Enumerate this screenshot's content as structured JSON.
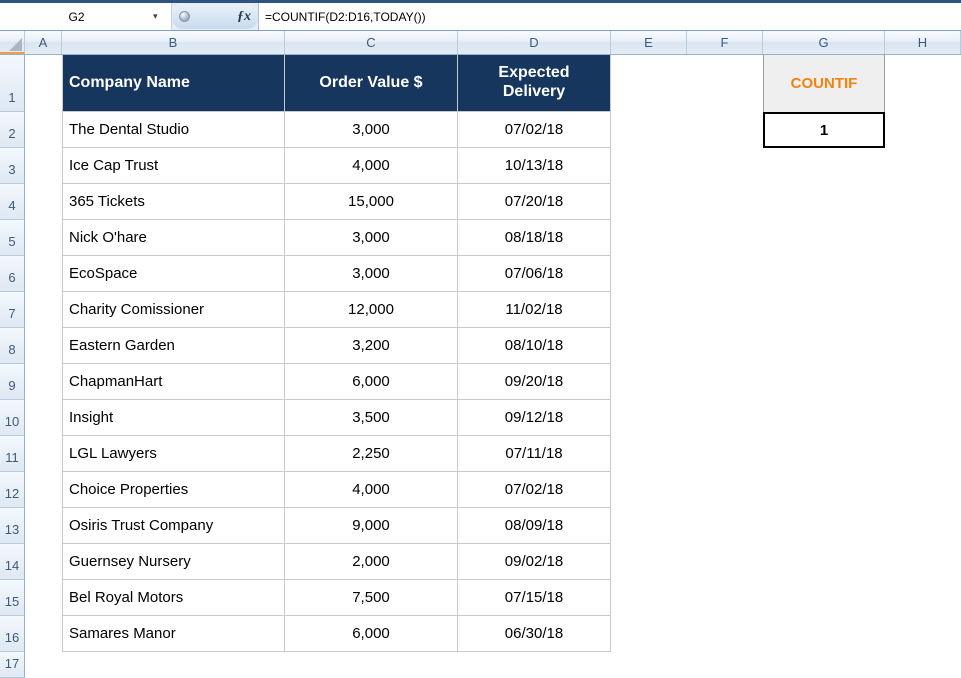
{
  "formula_bar": {
    "name_box": "G2",
    "formula": "=COUNTIF(D2:D16,TODAY())",
    "icons": {
      "dropdown": "▾",
      "fx": "ƒx"
    }
  },
  "grid": {
    "column_letters": [
      "A",
      "B",
      "C",
      "D",
      "E",
      "F",
      "G",
      "H"
    ],
    "row_numbers": [
      "1",
      "2",
      "3",
      "4",
      "5",
      "6",
      "7",
      "8",
      "9",
      "10",
      "11",
      "12",
      "13",
      "14",
      "15",
      "16",
      "17"
    ]
  },
  "table": {
    "headers": {
      "company": "Company Name",
      "value": "Order Value $",
      "delivery": "Expected Delivery"
    },
    "rows": [
      {
        "company": "The Dental Studio",
        "value": "3,000",
        "date": "07/02/18"
      },
      {
        "company": "Ice Cap Trust",
        "value": "4,000",
        "date": "10/13/18"
      },
      {
        "company": "365 Tickets",
        "value": "15,000",
        "date": "07/20/18"
      },
      {
        "company": "Nick O'hare",
        "value": "3,000",
        "date": "08/18/18"
      },
      {
        "company": "EcoSpace",
        "value": "3,000",
        "date": "07/06/18"
      },
      {
        "company": "Charity Comissioner",
        "value": "12,000",
        "date": "11/02/18"
      },
      {
        "company": "Eastern Garden",
        "value": "3,200",
        "date": "08/10/18"
      },
      {
        "company": "ChapmanHart",
        "value": "6,000",
        "date": "09/20/18"
      },
      {
        "company": "Insight",
        "value": "3,500",
        "date": "09/12/18"
      },
      {
        "company": "LGL Lawyers",
        "value": "2,250",
        "date": "07/11/18"
      },
      {
        "company": "Choice Properties",
        "value": "4,000",
        "date": "07/02/18"
      },
      {
        "company": "Osiris Trust Company",
        "value": "9,000",
        "date": "08/09/18"
      },
      {
        "company": "Guernsey Nursery",
        "value": "2,000",
        "date": "09/02/18"
      },
      {
        "company": "Bel Royal Motors",
        "value": "7,500",
        "date": "07/15/18"
      },
      {
        "company": "Samares Manor",
        "value": "6,000",
        "date": "06/30/18"
      }
    ]
  },
  "countif": {
    "label": "COUNTIF",
    "value": "1"
  },
  "colors": {
    "header_fill": "#17365D",
    "countif_text": "#F5820C",
    "countif_bg": "#EFEFEF",
    "table_border": "#C9C9C9"
  }
}
